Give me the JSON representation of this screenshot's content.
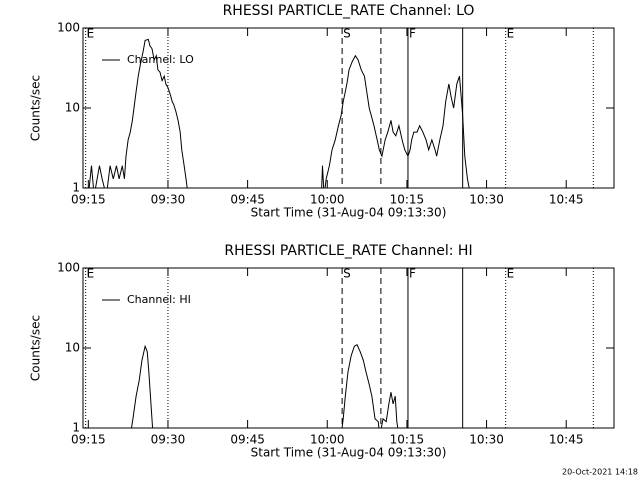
{
  "chart_data": [
    {
      "type": "line",
      "title": "RHESSI PARTICLE_RATE Channel: LO",
      "x_label": "Start Time (31-Aug-04 09:13:30)",
      "y_label": "Counts/sec",
      "x": [
        555.0,
        555.6,
        556.1,
        557.1,
        557.6,
        558.4,
        559.1,
        559.7,
        560.3,
        560.8,
        561.4,
        561.8,
        562.1,
        562.5,
        562.9,
        563.3,
        563.6,
        564.0,
        564.4,
        564.8,
        565.3,
        565.7,
        566.3,
        566.6,
        567.0,
        567.4,
        567.8,
        568.1,
        568.5,
        568.9,
        569.3,
        569.6,
        570.0,
        570.4,
        570.8,
        571.1,
        571.5,
        571.9,
        572.3,
        572.6,
        573.0,
        573.4,
        573.8,
        598.9,
        599.1,
        599.4,
        599.8,
        600.4,
        600.9,
        601.5,
        602.1,
        602.6,
        603.0,
        603.4,
        603.8,
        604.1,
        604.7,
        605.3,
        605.8,
        606.4,
        607.0,
        607.5,
        607.9,
        608.3,
        608.8,
        609.4,
        609.8,
        610.3,
        610.9,
        611.4,
        612.0,
        612.4,
        612.9,
        613.5,
        614.1,
        614.6,
        615.2,
        615.6,
        615.9,
        616.3,
        616.9,
        617.4,
        618.0,
        618.6,
        619.1,
        619.7,
        620.3,
        620.6,
        621.2,
        621.8,
        622.3,
        622.9,
        623.3,
        623.8,
        624.4,
        624.9,
        625.3,
        625.5,
        625.9,
        626.4,
        627.0
      ],
      "series": [
        {
          "name": "Channel: LO",
          "color": "#000000",
          "values": [
            0.8,
            1.9,
            0.8,
            1.9,
            1.3,
            0.8,
            1.9,
            1.3,
            1.9,
            1.3,
            1.9,
            1.3,
            2.5,
            4,
            5,
            7,
            10,
            16,
            25,
            35,
            50,
            70,
            72,
            60,
            55,
            40,
            45,
            30,
            28,
            22,
            25,
            20,
            18,
            15,
            12,
            11,
            9,
            7,
            5,
            3,
            2,
            1.3,
            0.8,
            0.8,
            1.9,
            0.8,
            1.3,
            1.9,
            3,
            4,
            6,
            8,
            12,
            16,
            22,
            30,
            38,
            45,
            40,
            30,
            25,
            15,
            10,
            8,
            6,
            4,
            3,
            2.5,
            4,
            5,
            7,
            5,
            4.5,
            6,
            4,
            3,
            2.5,
            3,
            4,
            5,
            5,
            6,
            5,
            4,
            3,
            4,
            3,
            2.5,
            4,
            6,
            12,
            20,
            14,
            10,
            20,
            25,
            12,
            8,
            2.5,
            1.3,
            0.8
          ]
        }
      ],
      "xlim": [
        554,
        654
      ],
      "xticks": [
        {
          "value": 555,
          "label": "09:15"
        },
        {
          "value": 570,
          "label": "09:30"
        },
        {
          "value": 585,
          "label": "09:45"
        },
        {
          "value": 600,
          "label": "10:00"
        },
        {
          "value": 615,
          "label": "10:15"
        },
        {
          "value": 630,
          "label": "10:30"
        },
        {
          "value": 645,
          "label": "10:45"
        }
      ],
      "ylim": [
        1,
        100
      ],
      "yticks": [
        1,
        10,
        100
      ],
      "log_y": true,
      "legend": "top-left",
      "markers": [
        {
          "x": 554.5,
          "style": "dotted",
          "label": "E"
        },
        {
          "x": 570,
          "style": "dotted"
        },
        {
          "x": 602.8,
          "style": "dashed",
          "label": "S"
        },
        {
          "x": 610.1,
          "style": "dashed"
        },
        {
          "x": 615.2,
          "style": "solid",
          "label": "F"
        },
        {
          "x": 625.5,
          "style": "solid"
        },
        {
          "x": 633.6,
          "style": "dotted",
          "label": "E"
        },
        {
          "x": 650.1,
          "style": "dotted"
        }
      ]
    },
    {
      "type": "line",
      "title": "RHESSI PARTICLE_RATE Channel: HI",
      "x_label": "Start Time (31-Aug-04 09:13:30)",
      "y_label": "Counts/sec",
      "x": [
        555.0,
        562.9,
        563.4,
        564.0,
        564.6,
        565.1,
        565.7,
        566.1,
        566.4,
        566.8,
        567.2,
        602.6,
        603.0,
        603.4,
        603.9,
        604.5,
        605.1,
        605.6,
        606.2,
        606.8,
        607.3,
        607.9,
        608.4,
        609.0,
        609.6,
        609.9,
        610.5,
        611.1,
        611.6,
        612.0,
        612.4,
        612.8,
        613.1,
        613.5
      ],
      "series": [
        {
          "name": "Channel: HI",
          "color": "#000000",
          "values": [
            0.8,
            0.8,
            1.3,
            2.5,
            4,
            7,
            10.5,
            9,
            5,
            2,
            0.8,
            0.8,
            1.3,
            2.5,
            5,
            8,
            10.5,
            11,
            9,
            7,
            5,
            3.5,
            2.5,
            1.3,
            1.2,
            0.8,
            1.3,
            1.2,
            2,
            2.8,
            2,
            2.5,
            1.2,
            0.8
          ]
        }
      ],
      "xlim": [
        554,
        654
      ],
      "xticks": [
        {
          "value": 555,
          "label": "09:15"
        },
        {
          "value": 570,
          "label": "09:30"
        },
        {
          "value": 585,
          "label": "09:45"
        },
        {
          "value": 600,
          "label": "10:00"
        },
        {
          "value": 615,
          "label": "10:15"
        },
        {
          "value": 630,
          "label": "10:30"
        },
        {
          "value": 645,
          "label": "10:45"
        }
      ],
      "ylim": [
        1,
        100
      ],
      "yticks": [
        1,
        10,
        100
      ],
      "log_y": true,
      "legend": "top-left",
      "markers": [
        {
          "x": 554.5,
          "style": "dotted",
          "label": "E"
        },
        {
          "x": 570,
          "style": "dotted"
        },
        {
          "x": 602.8,
          "style": "dashed",
          "label": "S"
        },
        {
          "x": 610.1,
          "style": "dashed"
        },
        {
          "x": 615.2,
          "style": "solid",
          "label": "F"
        },
        {
          "x": 625.5,
          "style": "solid"
        },
        {
          "x": 633.6,
          "style": "dotted",
          "label": "E"
        },
        {
          "x": 650.1,
          "style": "dotted"
        }
      ]
    }
  ],
  "footer": "20-Oct-2021 14:18"
}
